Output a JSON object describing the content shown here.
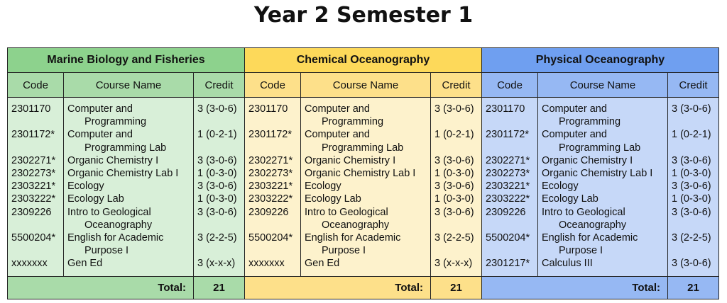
{
  "title": "Year 2 Semester 1",
  "columns": {
    "code": "Code",
    "name": "Course Name",
    "credit": "Credit"
  },
  "total_label": "Total:",
  "programs": [
    {
      "name": "Marine Biology and Fisheries",
      "total": "21",
      "courses": [
        {
          "code": "2301170",
          "name": [
            "Computer and",
            "Programming"
          ],
          "credit": "3 (3-0-6)"
        },
        {
          "code": "2301172*",
          "name": [
            "Computer and",
            "Programming Lab"
          ],
          "credit": "1 (0-2-1)"
        },
        {
          "code": "2302271*",
          "name": [
            "Organic Chemistry I"
          ],
          "credit": "3 (3-0-6)"
        },
        {
          "code": "2302273*",
          "name": [
            "Organic Chemistry Lab I"
          ],
          "credit": "1 (0-3-0)"
        },
        {
          "code": "2303221*",
          "name": [
            "Ecology"
          ],
          "credit": "3 (3-0-6)"
        },
        {
          "code": "2303222*",
          "name": [
            "Ecology Lab"
          ],
          "credit": "1 (0-3-0)"
        },
        {
          "code": "2309226",
          "name": [
            "Intro to Geological",
            "Oceanography"
          ],
          "credit": "3 (3-0-6)"
        },
        {
          "code": "5500204*",
          "name": [
            "English for Academic",
            "Purpose I"
          ],
          "credit": "3 (2-2-5)"
        },
        {
          "code": "xxxxxxx",
          "name": [
            "Gen Ed"
          ],
          "credit": "3 (x-x-x)"
        }
      ]
    },
    {
      "name": "Chemical Oceanography",
      "total": "21",
      "courses": [
        {
          "code": "2301170",
          "name": [
            "Computer and",
            "Programming"
          ],
          "credit": "3 (3-0-6)"
        },
        {
          "code": "2301172*",
          "name": [
            "Computer and",
            "Programming Lab"
          ],
          "credit": "1 (0-2-1)"
        },
        {
          "code": "2302271*",
          "name": [
            "Organic Chemistry I"
          ],
          "credit": "3 (3-0-6)"
        },
        {
          "code": "2302273*",
          "name": [
            "Organic Chemistry Lab I"
          ],
          "credit": "1 (0-3-0)"
        },
        {
          "code": "2303221*",
          "name": [
            "Ecology"
          ],
          "credit": "3 (3-0-6)"
        },
        {
          "code": "2303222*",
          "name": [
            "Ecology Lab"
          ],
          "credit": "1 (0-3-0)"
        },
        {
          "code": "2309226",
          "name": [
            "Intro to Geological",
            "Oceanography"
          ],
          "credit": "3 (3-0-6)"
        },
        {
          "code": "5500204*",
          "name": [
            "English for Academic",
            "Purpose I"
          ],
          "credit": "3 (2-2-5)"
        },
        {
          "code": "xxxxxxx",
          "name": [
            "Gen Ed"
          ],
          "credit": "3 (x-x-x)"
        }
      ]
    },
    {
      "name": "Physical Oceanography",
      "total": "21",
      "courses": [
        {
          "code": "2301170",
          "name": [
            "Computer and",
            "Programming"
          ],
          "credit": "3 (3-0-6)"
        },
        {
          "code": "2301172*",
          "name": [
            "Computer and",
            "Programming Lab"
          ],
          "credit": "1 (0-2-1)"
        },
        {
          "code": "2302271*",
          "name": [
            "Organic Chemistry I"
          ],
          "credit": "3 (3-0-6)"
        },
        {
          "code": "2302273*",
          "name": [
            "Organic Chemistry Lab I"
          ],
          "credit": "1 (0-3-0)"
        },
        {
          "code": "2303221*",
          "name": [
            "Ecology"
          ],
          "credit": "3 (3-0-6)"
        },
        {
          "code": "2303222*",
          "name": [
            "Ecology Lab"
          ],
          "credit": "1 (0-3-0)"
        },
        {
          "code": "2309226",
          "name": [
            "Intro to Geological",
            "Oceanography"
          ],
          "credit": "3 (3-0-6)"
        },
        {
          "code": "5500204*",
          "name": [
            "English for Academic",
            "Purpose I"
          ],
          "credit": "3 (2-2-5)"
        },
        {
          "code": "2301217*",
          "name": [
            "Calculus III"
          ],
          "credit": "3 (3-0-6)"
        }
      ]
    }
  ],
  "colors": {
    "green_header": "#8dd28d",
    "green_body": "#d8efd8",
    "yellow_header": "#fdd95a",
    "yellow_body": "#fdf2cc",
    "blue_header": "#6f9ff0",
    "blue_body": "#c6d8f8"
  }
}
